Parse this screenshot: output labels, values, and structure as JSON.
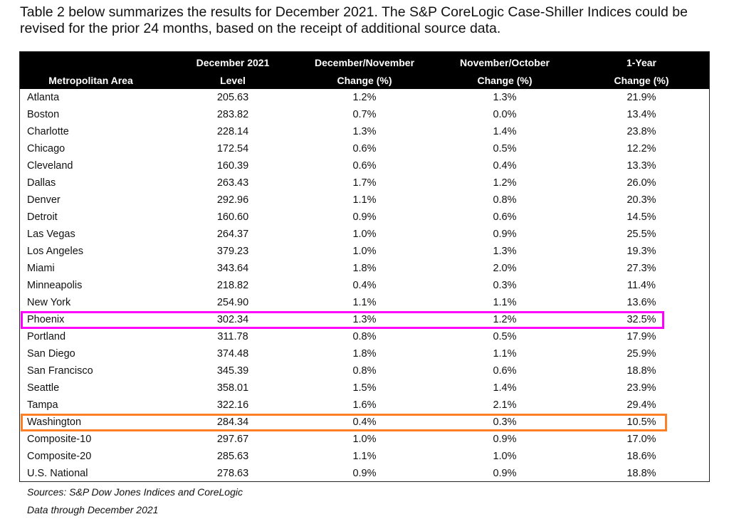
{
  "intro": "Table 2 below summarizes the results for December 2021. The S&P CoreLogic Case-Shiller Indices could be revised for the prior 24 months, based on the receipt of additional source data.",
  "table": {
    "headers": [
      {
        "line1": "",
        "line2": "Metropolitan Area"
      },
      {
        "line1": "December 2021",
        "line2": "Level"
      },
      {
        "line1": "December/November",
        "line2": "Change (%)"
      },
      {
        "line1": "November/October",
        "line2": "Change (%)"
      },
      {
        "line1": "1-Year",
        "line2": "Change (%)"
      }
    ],
    "rows": [
      [
        "Atlanta",
        "205.63",
        "1.2%",
        "1.3%",
        "21.9%"
      ],
      [
        "Boston",
        "283.82",
        "0.7%",
        "0.0%",
        "13.4%"
      ],
      [
        "Charlotte",
        "228.14",
        "1.3%",
        "1.4%",
        "23.8%"
      ],
      [
        "Chicago",
        "172.54",
        "0.6%",
        "0.5%",
        "12.2%"
      ],
      [
        "Cleveland",
        "160.39",
        "0.6%",
        "0.4%",
        "13.3%"
      ],
      [
        "Dallas",
        "263.43",
        "1.7%",
        "1.2%",
        "26.0%"
      ],
      [
        "Denver",
        "292.96",
        "1.1%",
        "0.8%",
        "20.3%"
      ],
      [
        "Detroit",
        "160.60",
        "0.9%",
        "0.6%",
        "14.5%"
      ],
      [
        "Las Vegas",
        "264.37",
        "1.0%",
        "0.9%",
        "25.5%"
      ],
      [
        "Los Angeles",
        "379.23",
        "1.0%",
        "1.3%",
        "19.3%"
      ],
      [
        "Miami",
        "343.64",
        "1.8%",
        "2.0%",
        "27.3%"
      ],
      [
        "Minneapolis",
        "218.82",
        "0.4%",
        "0.3%",
        "11.4%"
      ],
      [
        "New York",
        "254.90",
        "1.1%",
        "1.1%",
        "13.6%"
      ],
      [
        "Phoenix",
        "302.34",
        "1.3%",
        "1.2%",
        "32.5%"
      ],
      [
        "Portland",
        "311.78",
        "0.8%",
        "0.5%",
        "17.9%"
      ],
      [
        "San Diego",
        "374.48",
        "1.8%",
        "1.1%",
        "25.9%"
      ],
      [
        "San Francisco",
        "345.39",
        "0.8%",
        "0.6%",
        "18.8%"
      ],
      [
        "Seattle",
        "358.01",
        "1.5%",
        "1.4%",
        "23.9%"
      ],
      [
        "Tampa",
        "322.16",
        "1.6%",
        "2.1%",
        "29.4%"
      ],
      [
        "Washington",
        "284.34",
        "0.4%",
        "0.3%",
        "10.5%"
      ],
      [
        "Composite-10",
        "297.67",
        "1.0%",
        "0.9%",
        "17.0%"
      ],
      [
        "Composite-20",
        "285.63",
        "1.1%",
        "1.0%",
        "18.6%"
      ],
      [
        "U.S. National",
        "278.63",
        "0.9%",
        "0.9%",
        "18.8%"
      ]
    ],
    "highlights": [
      {
        "row": "Phoenix",
        "color": "#ff00ff"
      },
      {
        "row": "Washington",
        "color": "#ff7f27"
      }
    ]
  },
  "footer": {
    "sources": "Sources: S&P Dow Jones Indices and CoreLogic",
    "data_through": "Data through December 2021"
  }
}
